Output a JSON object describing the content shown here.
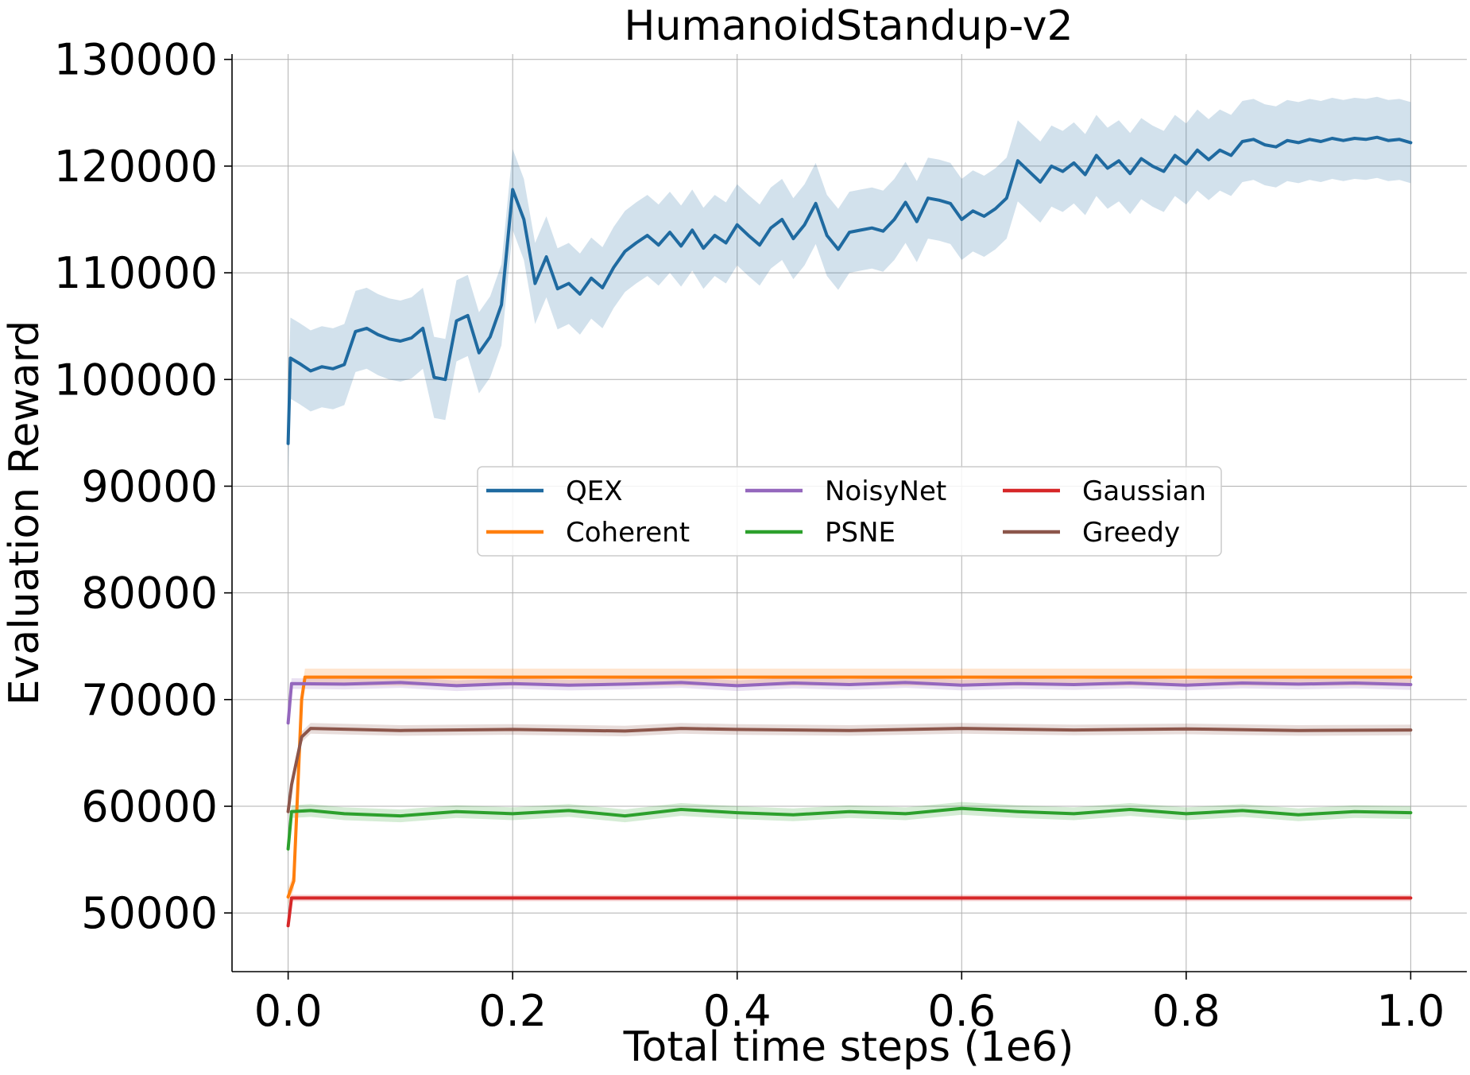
{
  "chart_data": {
    "type": "line",
    "title": "HumanoidStandup-v2",
    "xlabel": "Total time steps (1e6)",
    "ylabel": "Evaluation Reward",
    "xlim": [
      -0.05,
      1.05
    ],
    "ylim": [
      44500,
      130500
    ],
    "xticks": [
      0.0,
      0.2,
      0.4,
      0.6,
      0.8,
      1.0
    ],
    "xtick_labels": [
      "0.0",
      "0.2",
      "0.4",
      "0.6",
      "0.8",
      "1.0"
    ],
    "yticks": [
      50000,
      60000,
      70000,
      80000,
      90000,
      100000,
      110000,
      120000,
      130000
    ],
    "ytick_labels": [
      "50000",
      "60000",
      "70000",
      "80000",
      "90000",
      "100000",
      "110000",
      "120000",
      "130000"
    ],
    "grid": true,
    "legend_position": "center",
    "legend_columns": 3,
    "series": [
      {
        "name": "QEX",
        "color": "#1f6aa0",
        "band": 3800,
        "points": [
          [
            0.0,
            94000
          ],
          [
            0.002,
            102000
          ],
          [
            0.01,
            101500
          ],
          [
            0.02,
            100800
          ],
          [
            0.03,
            101200
          ],
          [
            0.04,
            101000
          ],
          [
            0.05,
            101400
          ],
          [
            0.06,
            104500
          ],
          [
            0.07,
            104800
          ],
          [
            0.08,
            104200
          ],
          [
            0.09,
            103800
          ],
          [
            0.1,
            103600
          ],
          [
            0.11,
            103900
          ],
          [
            0.12,
            104800
          ],
          [
            0.13,
            100200
          ],
          [
            0.14,
            100000
          ],
          [
            0.15,
            105500
          ],
          [
            0.16,
            106000
          ],
          [
            0.17,
            102500
          ],
          [
            0.18,
            104000
          ],
          [
            0.19,
            107000
          ],
          [
            0.2,
            117800
          ],
          [
            0.21,
            115000
          ],
          [
            0.22,
            109000
          ],
          [
            0.23,
            111500
          ],
          [
            0.24,
            108500
          ],
          [
            0.25,
            109000
          ],
          [
            0.26,
            108000
          ],
          [
            0.27,
            109500
          ],
          [
            0.28,
            108600
          ],
          [
            0.29,
            110500
          ],
          [
            0.3,
            112000
          ],
          [
            0.31,
            112800
          ],
          [
            0.32,
            113500
          ],
          [
            0.33,
            112600
          ],
          [
            0.34,
            113800
          ],
          [
            0.35,
            112500
          ],
          [
            0.36,
            114000
          ],
          [
            0.37,
            112300
          ],
          [
            0.38,
            113500
          ],
          [
            0.39,
            112800
          ],
          [
            0.4,
            114500
          ],
          [
            0.41,
            113500
          ],
          [
            0.42,
            112600
          ],
          [
            0.43,
            114200
          ],
          [
            0.44,
            115000
          ],
          [
            0.45,
            113200
          ],
          [
            0.46,
            114500
          ],
          [
            0.47,
            116500
          ],
          [
            0.48,
            113500
          ],
          [
            0.49,
            112200
          ],
          [
            0.5,
            113800
          ],
          [
            0.51,
            114000
          ],
          [
            0.52,
            114200
          ],
          [
            0.53,
            113900
          ],
          [
            0.54,
            115000
          ],
          [
            0.55,
            116600
          ],
          [
            0.56,
            114800
          ],
          [
            0.57,
            117000
          ],
          [
            0.58,
            116800
          ],
          [
            0.59,
            116500
          ],
          [
            0.6,
            115000
          ],
          [
            0.61,
            115800
          ],
          [
            0.62,
            115300
          ],
          [
            0.63,
            116000
          ],
          [
            0.64,
            117000
          ],
          [
            0.65,
            120500
          ],
          [
            0.66,
            119500
          ],
          [
            0.67,
            118500
          ],
          [
            0.68,
            120000
          ],
          [
            0.69,
            119500
          ],
          [
            0.7,
            120300
          ],
          [
            0.71,
            119200
          ],
          [
            0.72,
            121000
          ],
          [
            0.73,
            119800
          ],
          [
            0.74,
            120500
          ],
          [
            0.75,
            119300
          ],
          [
            0.76,
            120700
          ],
          [
            0.77,
            120000
          ],
          [
            0.78,
            119500
          ],
          [
            0.79,
            121000
          ],
          [
            0.8,
            120200
          ],
          [
            0.81,
            121500
          ],
          [
            0.82,
            120600
          ],
          [
            0.83,
            121500
          ],
          [
            0.84,
            121000
          ],
          [
            0.85,
            122300
          ],
          [
            0.86,
            122500
          ],
          [
            0.87,
            122000
          ],
          [
            0.88,
            121800
          ],
          [
            0.89,
            122400
          ],
          [
            0.9,
            122200
          ],
          [
            0.91,
            122500
          ],
          [
            0.92,
            122300
          ],
          [
            0.93,
            122600
          ],
          [
            0.94,
            122400
          ],
          [
            0.95,
            122600
          ],
          [
            0.96,
            122500
          ],
          [
            0.97,
            122700
          ],
          [
            0.98,
            122400
          ],
          [
            0.99,
            122500
          ],
          [
            1.0,
            122200
          ]
        ]
      },
      {
        "name": "Coherent",
        "color": "#ff7f0e",
        "band": 800,
        "points": [
          [
            0.0,
            51500
          ],
          [
            0.005,
            53000
          ],
          [
            0.012,
            70000
          ],
          [
            0.015,
            72100
          ],
          [
            0.1,
            72100
          ],
          [
            0.3,
            72100
          ],
          [
            0.5,
            72100
          ],
          [
            0.7,
            72100
          ],
          [
            0.9,
            72100
          ],
          [
            1.0,
            72100
          ]
        ]
      },
      {
        "name": "NoisyNet",
        "color": "#9467bd",
        "band": 500,
        "points": [
          [
            0.0,
            67800
          ],
          [
            0.003,
            71500
          ],
          [
            0.05,
            71450
          ],
          [
            0.1,
            71600
          ],
          [
            0.15,
            71300
          ],
          [
            0.2,
            71500
          ],
          [
            0.25,
            71350
          ],
          [
            0.3,
            71450
          ],
          [
            0.35,
            71600
          ],
          [
            0.4,
            71300
          ],
          [
            0.45,
            71550
          ],
          [
            0.5,
            71400
          ],
          [
            0.55,
            71600
          ],
          [
            0.6,
            71350
          ],
          [
            0.65,
            71500
          ],
          [
            0.7,
            71400
          ],
          [
            0.75,
            71550
          ],
          [
            0.8,
            71350
          ],
          [
            0.85,
            71550
          ],
          [
            0.9,
            71450
          ],
          [
            0.95,
            71550
          ],
          [
            1.0,
            71400
          ]
        ]
      },
      {
        "name": "PSNE",
        "color": "#2ca02c",
        "band": 600,
        "points": [
          [
            0.0,
            56000
          ],
          [
            0.003,
            59500
          ],
          [
            0.02,
            59600
          ],
          [
            0.05,
            59300
          ],
          [
            0.1,
            59100
          ],
          [
            0.15,
            59500
          ],
          [
            0.2,
            59300
          ],
          [
            0.25,
            59600
          ],
          [
            0.3,
            59100
          ],
          [
            0.35,
            59700
          ],
          [
            0.4,
            59400
          ],
          [
            0.45,
            59200
          ],
          [
            0.5,
            59500
          ],
          [
            0.55,
            59300
          ],
          [
            0.6,
            59800
          ],
          [
            0.65,
            59500
          ],
          [
            0.7,
            59300
          ],
          [
            0.75,
            59700
          ],
          [
            0.8,
            59300
          ],
          [
            0.85,
            59600
          ],
          [
            0.9,
            59200
          ],
          [
            0.95,
            59500
          ],
          [
            1.0,
            59400
          ]
        ]
      },
      {
        "name": "Gaussian",
        "color": "#d62728",
        "band": 300,
        "points": [
          [
            0.0,
            48800
          ],
          [
            0.003,
            51400
          ],
          [
            0.1,
            51400
          ],
          [
            0.3,
            51400
          ],
          [
            0.5,
            51400
          ],
          [
            0.7,
            51400
          ],
          [
            0.9,
            51400
          ],
          [
            1.0,
            51400
          ]
        ]
      },
      {
        "name": "Greedy",
        "color": "#8c564b",
        "band": 500,
        "points": [
          [
            0.0,
            59500
          ],
          [
            0.003,
            62000
          ],
          [
            0.012,
            66500
          ],
          [
            0.02,
            67300
          ],
          [
            0.1,
            67100
          ],
          [
            0.2,
            67200
          ],
          [
            0.3,
            67050
          ],
          [
            0.35,
            67300
          ],
          [
            0.4,
            67200
          ],
          [
            0.5,
            67100
          ],
          [
            0.6,
            67300
          ],
          [
            0.7,
            67150
          ],
          [
            0.8,
            67250
          ],
          [
            0.9,
            67100
          ],
          [
            1.0,
            67150
          ]
        ]
      }
    ]
  }
}
